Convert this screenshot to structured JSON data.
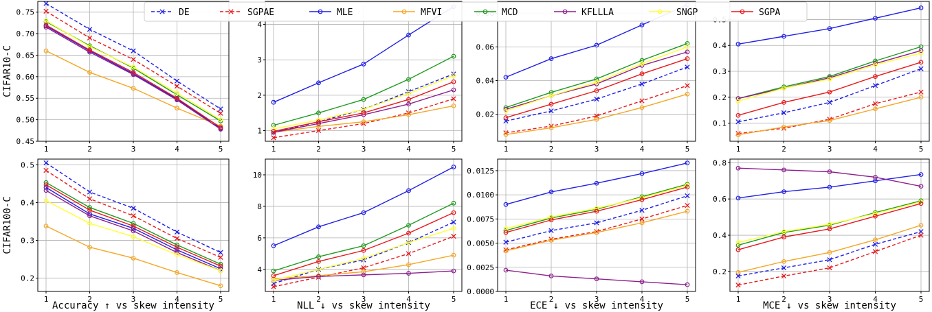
{
  "row_labels": [
    "CIFAR10-C",
    "CIFAR100-C"
  ],
  "x_labels": [
    "Accuracy ↑ vs skew intensity",
    "NLL ↓ vs skew intensity",
    "ECE ↓ vs skew intensity",
    "MCE ↓ vs skew intensity"
  ],
  "legend": [
    {
      "name": "DE",
      "color": "#1f1fe6",
      "dash": true,
      "marker": "x"
    },
    {
      "name": "SGPAE",
      "color": "#e8191c",
      "dash": true,
      "marker": "x"
    },
    {
      "name": "MLE",
      "color": "#1f1fe6",
      "dash": false,
      "marker": "o"
    },
    {
      "name": "MFVI",
      "color": "#f5a623",
      "dash": false,
      "marker": "o"
    },
    {
      "name": "MCD",
      "color": "#1f9a1f",
      "dash": false,
      "marker": "o"
    },
    {
      "name": "KFLLLA",
      "color": "#8e1f8e",
      "dash": false,
      "marker": "o"
    },
    {
      "name": "SNGP",
      "color": "#ffff33",
      "dash": false,
      "marker": "o"
    },
    {
      "name": "SGPA",
      "color": "#e8191c",
      "dash": false,
      "marker": "o"
    }
  ],
  "chart_data": [
    {
      "type": "line",
      "row": 0,
      "col": 0,
      "x": [
        1,
        2,
        3,
        4,
        5
      ],
      "ylim": [
        0.45,
        0.775
      ],
      "yticks": [
        0.45,
        0.5,
        0.55,
        0.6,
        0.65,
        0.7,
        0.75
      ],
      "ytick_labels": [
        "0.45",
        "0.50",
        "0.55",
        "0.60",
        "0.65",
        "0.70",
        "0.75"
      ],
      "series": [
        {
          "name": "DE",
          "values": [
            0.77,
            0.71,
            0.66,
            0.59,
            0.525
          ]
        },
        {
          "name": "SGPAE",
          "values": [
            0.752,
            0.69,
            0.64,
            0.578,
            0.515
          ]
        },
        {
          "name": "MLE",
          "values": [
            0.718,
            0.66,
            0.607,
            0.548,
            0.48
          ]
        },
        {
          "name": "MFVI",
          "values": [
            0.66,
            0.61,
            0.573,
            0.527,
            0.485
          ]
        },
        {
          "name": "MCD",
          "values": [
            0.728,
            0.672,
            0.62,
            0.558,
            0.497
          ]
        },
        {
          "name": "KFLLLA",
          "values": [
            0.715,
            0.657,
            0.605,
            0.546,
            0.478
          ]
        },
        {
          "name": "SNGP",
          "values": [
            0.73,
            0.67,
            0.622,
            0.562,
            0.5
          ]
        },
        {
          "name": "SGPA",
          "values": [
            0.72,
            0.662,
            0.61,
            0.55,
            0.482
          ]
        }
      ]
    },
    {
      "type": "line",
      "row": 0,
      "col": 1,
      "x": [
        1,
        2,
        3,
        4,
        5
      ],
      "ylim": [
        0.7,
        4.65
      ],
      "yticks": [
        1,
        2,
        3,
        4
      ],
      "ytick_labels": [
        "1",
        "2",
        "3",
        "4"
      ],
      "series": [
        {
          "name": "DE",
          "values": [
            0.95,
            1.25,
            1.6,
            2.1,
            2.6
          ]
        },
        {
          "name": "SGPAE",
          "values": [
            0.8,
            1.0,
            1.2,
            1.5,
            1.9
          ]
        },
        {
          "name": "MLE",
          "values": [
            1.8,
            2.35,
            2.88,
            3.7,
            4.5
          ]
        },
        {
          "name": "MFVI",
          "values": [
            0.95,
            1.12,
            1.25,
            1.45,
            1.7
          ]
        },
        {
          "name": "MCD",
          "values": [
            1.15,
            1.5,
            1.88,
            2.45,
            3.1
          ]
        },
        {
          "name": "KFLLLA",
          "values": [
            0.95,
            1.2,
            1.45,
            1.75,
            2.15
          ]
        },
        {
          "name": "SNGP",
          "values": [
            1.05,
            1.3,
            1.6,
            2.05,
            2.55
          ]
        },
        {
          "name": "SGPA",
          "values": [
            0.98,
            1.25,
            1.5,
            1.88,
            2.38
          ]
        }
      ]
    },
    {
      "type": "line",
      "row": 0,
      "col": 2,
      "x": [
        1,
        2,
        3,
        4,
        5
      ],
      "ylim": [
        0.004,
        0.087
      ],
      "yticks": [
        0.02,
        0.04,
        0.06,
        0.08
      ],
      "ytick_labels": [
        "0.02",
        "0.04",
        "0.06",
        "0.08"
      ],
      "series": [
        {
          "name": "DE",
          "values": [
            0.016,
            0.022,
            0.029,
            0.038,
            0.048
          ]
        },
        {
          "name": "SGPAE",
          "values": [
            0.009,
            0.013,
            0.019,
            0.028,
            0.037
          ]
        },
        {
          "name": "MLE",
          "values": [
            0.042,
            0.053,
            0.061,
            0.073,
            0.085
          ]
        },
        {
          "name": "MFVI",
          "values": [
            0.008,
            0.012,
            0.017,
            0.024,
            0.032
          ]
        },
        {
          "name": "MCD",
          "values": [
            0.024,
            0.033,
            0.041,
            0.052,
            0.062
          ]
        },
        {
          "name": "KFLLLA",
          "values": [
            0.023,
            0.031,
            0.038,
            0.049,
            0.057
          ]
        },
        {
          "name": "SNGP",
          "values": [
            0.022,
            0.031,
            0.039,
            0.05,
            0.06
          ]
        },
        {
          "name": "SGPA",
          "values": [
            0.018,
            0.026,
            0.034,
            0.044,
            0.053
          ]
        }
      ]
    },
    {
      "type": "line",
      "row": 0,
      "col": 3,
      "x": [
        1,
        2,
        3,
        4,
        5
      ],
      "ylim": [
        0.03,
        0.57
      ],
      "yticks": [
        0.1,
        0.2,
        0.3,
        0.4,
        0.5
      ],
      "ytick_labels": [
        "0.1",
        "0.2",
        "0.3",
        "0.4",
        "0.5"
      ],
      "series": [
        {
          "name": "DE",
          "values": [
            0.105,
            0.14,
            0.18,
            0.245,
            0.31
          ]
        },
        {
          "name": "SGPAE",
          "values": [
            0.06,
            0.08,
            0.115,
            0.175,
            0.22
          ]
        },
        {
          "name": "MLE",
          "values": [
            0.405,
            0.435,
            0.465,
            0.505,
            0.545
          ]
        },
        {
          "name": "MFVI",
          "values": [
            0.055,
            0.085,
            0.11,
            0.155,
            0.2
          ]
        },
        {
          "name": "MCD",
          "values": [
            0.195,
            0.24,
            0.28,
            0.34,
            0.395
          ]
        },
        {
          "name": "KFLLLA",
          "values": [
            0.195,
            0.235,
            0.275,
            0.33,
            0.38
          ]
        },
        {
          "name": "SNGP",
          "values": [
            0.185,
            0.235,
            0.27,
            0.325,
            0.37
          ]
        },
        {
          "name": "SGPA",
          "values": [
            0.13,
            0.18,
            0.22,
            0.28,
            0.335
          ]
        }
      ]
    },
    {
      "type": "line",
      "row": 1,
      "col": 0,
      "x": [
        1,
        2,
        3,
        4,
        5
      ],
      "ylim": [
        0.165,
        0.515
      ],
      "yticks": [
        0.2,
        0.3,
        0.4,
        0.5
      ],
      "ytick_labels": [
        "0.2",
        "0.3",
        "0.4",
        "0.5"
      ],
      "series": [
        {
          "name": "DE",
          "values": [
            0.505,
            0.428,
            0.385,
            0.322,
            0.268
          ]
        },
        {
          "name": "SGPAE",
          "values": [
            0.485,
            0.41,
            0.365,
            0.305,
            0.255
          ]
        },
        {
          "name": "MLE",
          "values": [
            0.44,
            0.37,
            0.332,
            0.275,
            0.225
          ]
        },
        {
          "name": "MFVI",
          "values": [
            0.338,
            0.282,
            0.253,
            0.215,
            0.18
          ]
        },
        {
          "name": "MCD",
          "values": [
            0.453,
            0.387,
            0.345,
            0.288,
            0.237
          ]
        },
        {
          "name": "KFLLLA",
          "values": [
            0.432,
            0.365,
            0.325,
            0.268,
            0.22
          ]
        },
        {
          "name": "SNGP",
          "values": [
            0.405,
            0.345,
            0.31,
            0.262,
            0.22
          ]
        },
        {
          "name": "SGPA",
          "values": [
            0.447,
            0.38,
            0.338,
            0.282,
            0.232
          ]
        }
      ]
    },
    {
      "type": "line",
      "row": 1,
      "col": 1,
      "x": [
        1,
        2,
        3,
        4,
        5
      ],
      "ylim": [
        2.6,
        11.0
      ],
      "yticks": [
        4,
        6,
        8,
        10
      ],
      "ytick_labels": [
        "4",
        "6",
        "8",
        "10"
      ],
      "series": [
        {
          "name": "DE",
          "values": [
            3.1,
            4.0,
            4.6,
            5.7,
            7.0
          ]
        },
        {
          "name": "SGPAE",
          "values": [
            2.9,
            3.5,
            4.1,
            5.0,
            6.1
          ]
        },
        {
          "name": "MLE",
          "values": [
            5.5,
            6.7,
            7.6,
            9.0,
            10.5
          ]
        },
        {
          "name": "MFVI",
          "values": [
            3.4,
            3.6,
            3.85,
            4.3,
            4.9
          ]
        },
        {
          "name": "MCD",
          "values": [
            3.9,
            4.8,
            5.5,
            6.8,
            8.2
          ]
        },
        {
          "name": "KFLLLA",
          "values": [
            3.3,
            3.55,
            3.65,
            3.75,
            3.9
          ]
        },
        {
          "name": "SNGP",
          "values": [
            3.3,
            4.0,
            4.7,
            5.7,
            6.6
          ]
        },
        {
          "name": "SGPA",
          "values": [
            3.6,
            4.5,
            5.2,
            6.3,
            7.6
          ]
        }
      ]
    },
    {
      "type": "line",
      "row": 1,
      "col": 2,
      "x": [
        1,
        2,
        3,
        4,
        5
      ],
      "ylim": [
        0.0,
        0.0137
      ],
      "yticks": [
        0,
        0.0025,
        0.005,
        0.0075,
        0.01,
        0.0125
      ],
      "ytick_labels": [
        "0.0000",
        "0.0025",
        "0.0050",
        "0.0075",
        "0.0100",
        "0.0125"
      ],
      "series": [
        {
          "name": "DE",
          "values": [
            0.0051,
            0.0063,
            0.0071,
            0.0084,
            0.0099
          ]
        },
        {
          "name": "SGPAE",
          "values": [
            0.0043,
            0.0054,
            0.0062,
            0.0075,
            0.0089
          ]
        },
        {
          "name": "MLE",
          "values": [
            0.009,
            0.0103,
            0.0112,
            0.0122,
            0.0133
          ]
        },
        {
          "name": "MFVI",
          "values": [
            0.0042,
            0.0053,
            0.0061,
            0.0071,
            0.0083
          ]
        },
        {
          "name": "MCD",
          "values": [
            0.0063,
            0.0076,
            0.0085,
            0.0098,
            0.0111
          ]
        },
        {
          "name": "KFLLLA",
          "values": [
            0.0022,
            0.0016,
            0.0013,
            0.001,
            0.0007
          ]
        },
        {
          "name": "SNGP",
          "values": [
            0.0065,
            0.0077,
            0.0086,
            0.0097,
            0.011
          ]
        },
        {
          "name": "SGPA",
          "values": [
            0.0061,
            0.0074,
            0.0083,
            0.0095,
            0.0108
          ]
        }
      ]
    },
    {
      "type": "line",
      "row": 1,
      "col": 3,
      "x": [
        1,
        2,
        3,
        4,
        5
      ],
      "ylim": [
        0.09,
        0.82
      ],
      "yticks": [
        0.2,
        0.4,
        0.6,
        0.8
      ],
      "ytick_labels": [
        "0.2",
        "0.4",
        "0.6",
        "0.8"
      ],
      "series": [
        {
          "name": "DE",
          "values": [
            0.175,
            0.22,
            0.265,
            0.35,
            0.42
          ]
        },
        {
          "name": "SGPAE",
          "values": [
            0.125,
            0.175,
            0.22,
            0.31,
            0.4
          ]
        },
        {
          "name": "MLE",
          "values": [
            0.605,
            0.64,
            0.665,
            0.7,
            0.735
          ]
        },
        {
          "name": "MFVI",
          "values": [
            0.195,
            0.255,
            0.305,
            0.375,
            0.455
          ]
        },
        {
          "name": "MCD",
          "values": [
            0.345,
            0.415,
            0.455,
            0.525,
            0.59
          ]
        },
        {
          "name": "KFLLLA",
          "values": [
            0.77,
            0.76,
            0.75,
            0.72,
            0.67
          ]
        },
        {
          "name": "SNGP",
          "values": [
            0.36,
            0.42,
            0.46,
            0.52,
            0.585
          ]
        },
        {
          "name": "SGPA",
          "values": [
            0.32,
            0.39,
            0.435,
            0.505,
            0.575
          ]
        }
      ]
    }
  ]
}
